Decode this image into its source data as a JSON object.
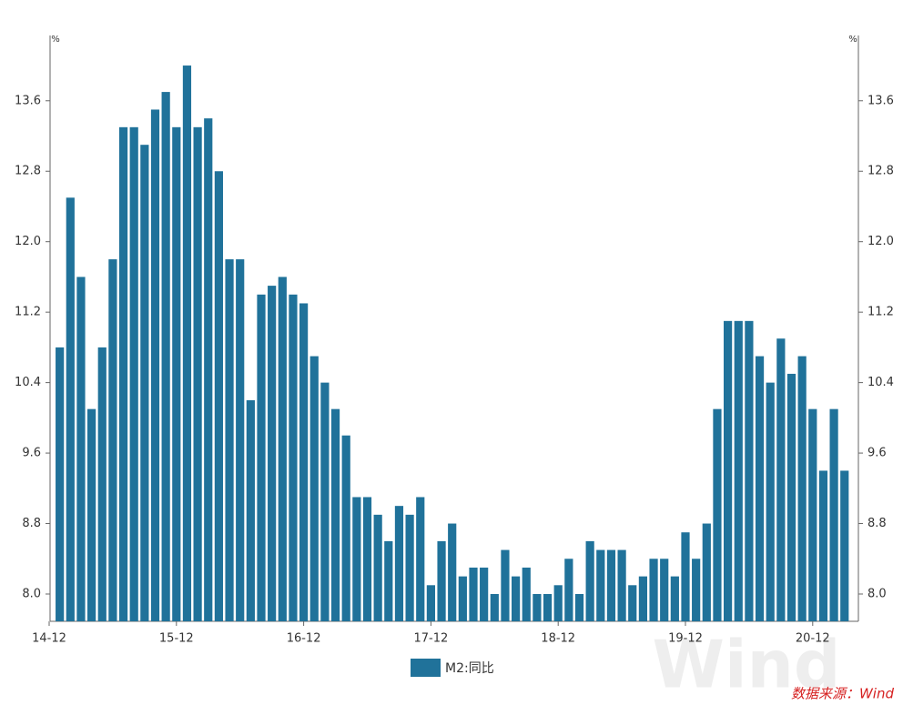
{
  "chart_data": {
    "type": "bar",
    "y_label": "%",
    "categories": [
      "14-12",
      null,
      null,
      null,
      null,
      null,
      null,
      null,
      null,
      null,
      null,
      null,
      "15-12",
      null,
      null,
      null,
      null,
      null,
      null,
      null,
      null,
      null,
      null,
      null,
      "16-12",
      null,
      null,
      null,
      null,
      null,
      null,
      null,
      null,
      null,
      null,
      null,
      "17-12",
      null,
      null,
      null,
      null,
      null,
      null,
      null,
      null,
      null,
      null,
      null,
      "18-12",
      null,
      null,
      null,
      null,
      null,
      null,
      null,
      null,
      null,
      null,
      null,
      "19-12",
      null,
      null,
      null,
      null,
      null,
      null,
      null,
      null,
      null,
      null,
      null,
      "20-12",
      null,
      null,
      null
    ],
    "series": [
      {
        "name": "M2:同比",
        "color": "#20729a",
        "values": [
          null,
          10.8,
          12.5,
          11.6,
          10.1,
          10.8,
          11.8,
          13.3,
          13.3,
          13.1,
          13.5,
          13.7,
          13.3,
          14.0,
          13.3,
          13.4,
          12.8,
          11.8,
          11.8,
          10.2,
          11.4,
          11.5,
          11.6,
          11.4,
          11.3,
          10.7,
          10.4,
          10.1,
          9.8,
          9.1,
          9.1,
          8.9,
          8.6,
          9.0,
          8.9,
          9.1,
          8.1,
          8.6,
          8.8,
          8.2,
          8.3,
          8.3,
          8.0,
          8.5,
          8.2,
          8.3,
          8.0,
          8.0,
          8.1,
          8.4,
          8.0,
          8.6,
          8.5,
          8.5,
          8.5,
          8.1,
          8.2,
          8.4,
          8.4,
          8.2,
          8.7,
          8.4,
          8.8,
          10.1,
          11.1,
          11.1,
          11.1,
          10.7,
          10.4,
          10.9,
          10.5,
          10.7,
          10.1,
          9.4,
          10.1,
          9.4
        ]
      }
    ],
    "ylim": [
      7.69,
      14.3
    ],
    "yticks": [
      {
        "value": 8,
        "label": "8.0"
      },
      8.8,
      9.6,
      10.4,
      11.2,
      {
        "value": 12,
        "label": "12.0"
      },
      12.8,
      13.6
    ],
    "legend": "bottom",
    "watermark": "Wind",
    "source": "数据来源：Wind"
  }
}
